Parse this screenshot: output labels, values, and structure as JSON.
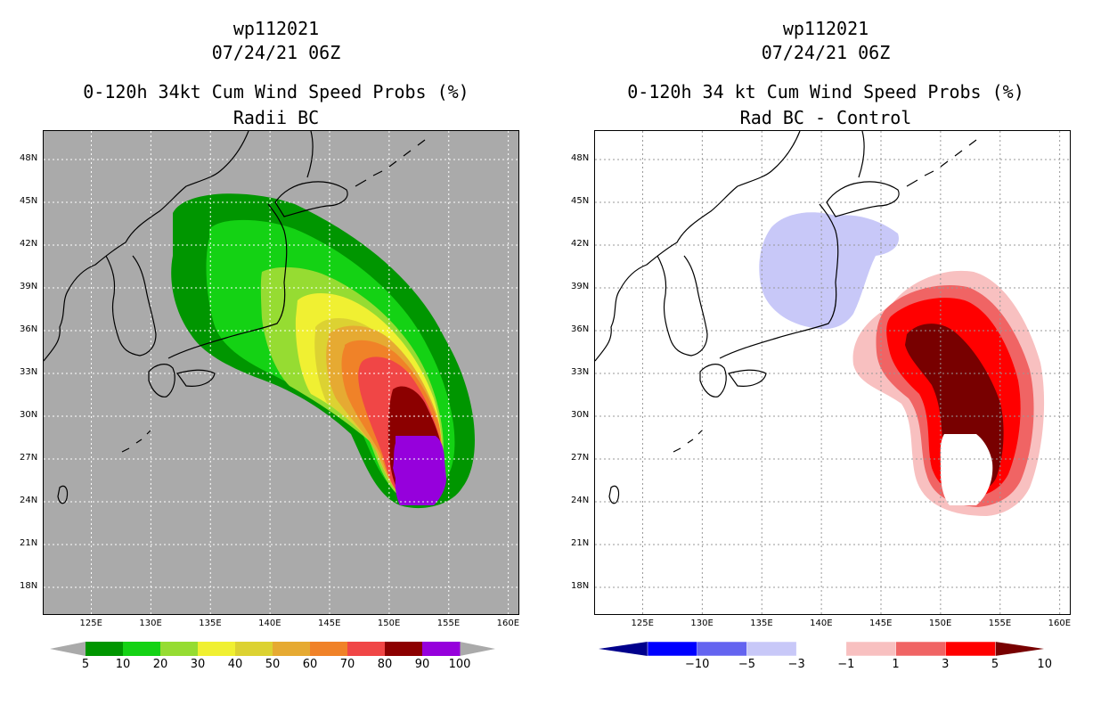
{
  "left_panel": {
    "title": [
      "wp112021",
      "07/24/21 06Z",
      "0-120h 34kt Cum Wind Speed Probs (%)",
      "Radii BC"
    ],
    "colorbar_labels": [
      "5",
      "10",
      "20",
      "30",
      "40",
      "50",
      "60",
      "70",
      "80",
      "90",
      "100"
    ],
    "colorbar_colors": [
      "#009600",
      "#14d214",
      "#96dc32",
      "#f0f032",
      "#dcd232",
      "#e6aa32",
      "#f08228",
      "#f04646",
      "#8c0000",
      "#9600dc"
    ],
    "background_color": "#aaaaaa"
  },
  "right_panel": {
    "title": [
      "wp112021",
      "07/24/21 06Z",
      "0-120h 34 kt Cum Wind Speed Probs (%)",
      "Rad BC - Control"
    ],
    "colorbar_labels": [
      "−10",
      "−5",
      "−3",
      "−1",
      "1",
      "3",
      "5",
      "10"
    ],
    "colorbar_colors": [
      "#00008c",
      "#0000ff",
      "#6464f0",
      "#c8c8f8",
      "#ffffff",
      "#f8c0c0",
      "#f06464",
      "#ff0000",
      "#780000"
    ],
    "background_color": "#ffffff"
  },
  "axes": {
    "lat_labels": [
      "48N",
      "45N",
      "42N",
      "39N",
      "36N",
      "33N",
      "30N",
      "27N",
      "24N",
      "21N",
      "18N"
    ],
    "lon_labels": [
      "125E",
      "130E",
      "135E",
      "140E",
      "145E",
      "150E",
      "155E",
      "160E"
    ]
  }
}
